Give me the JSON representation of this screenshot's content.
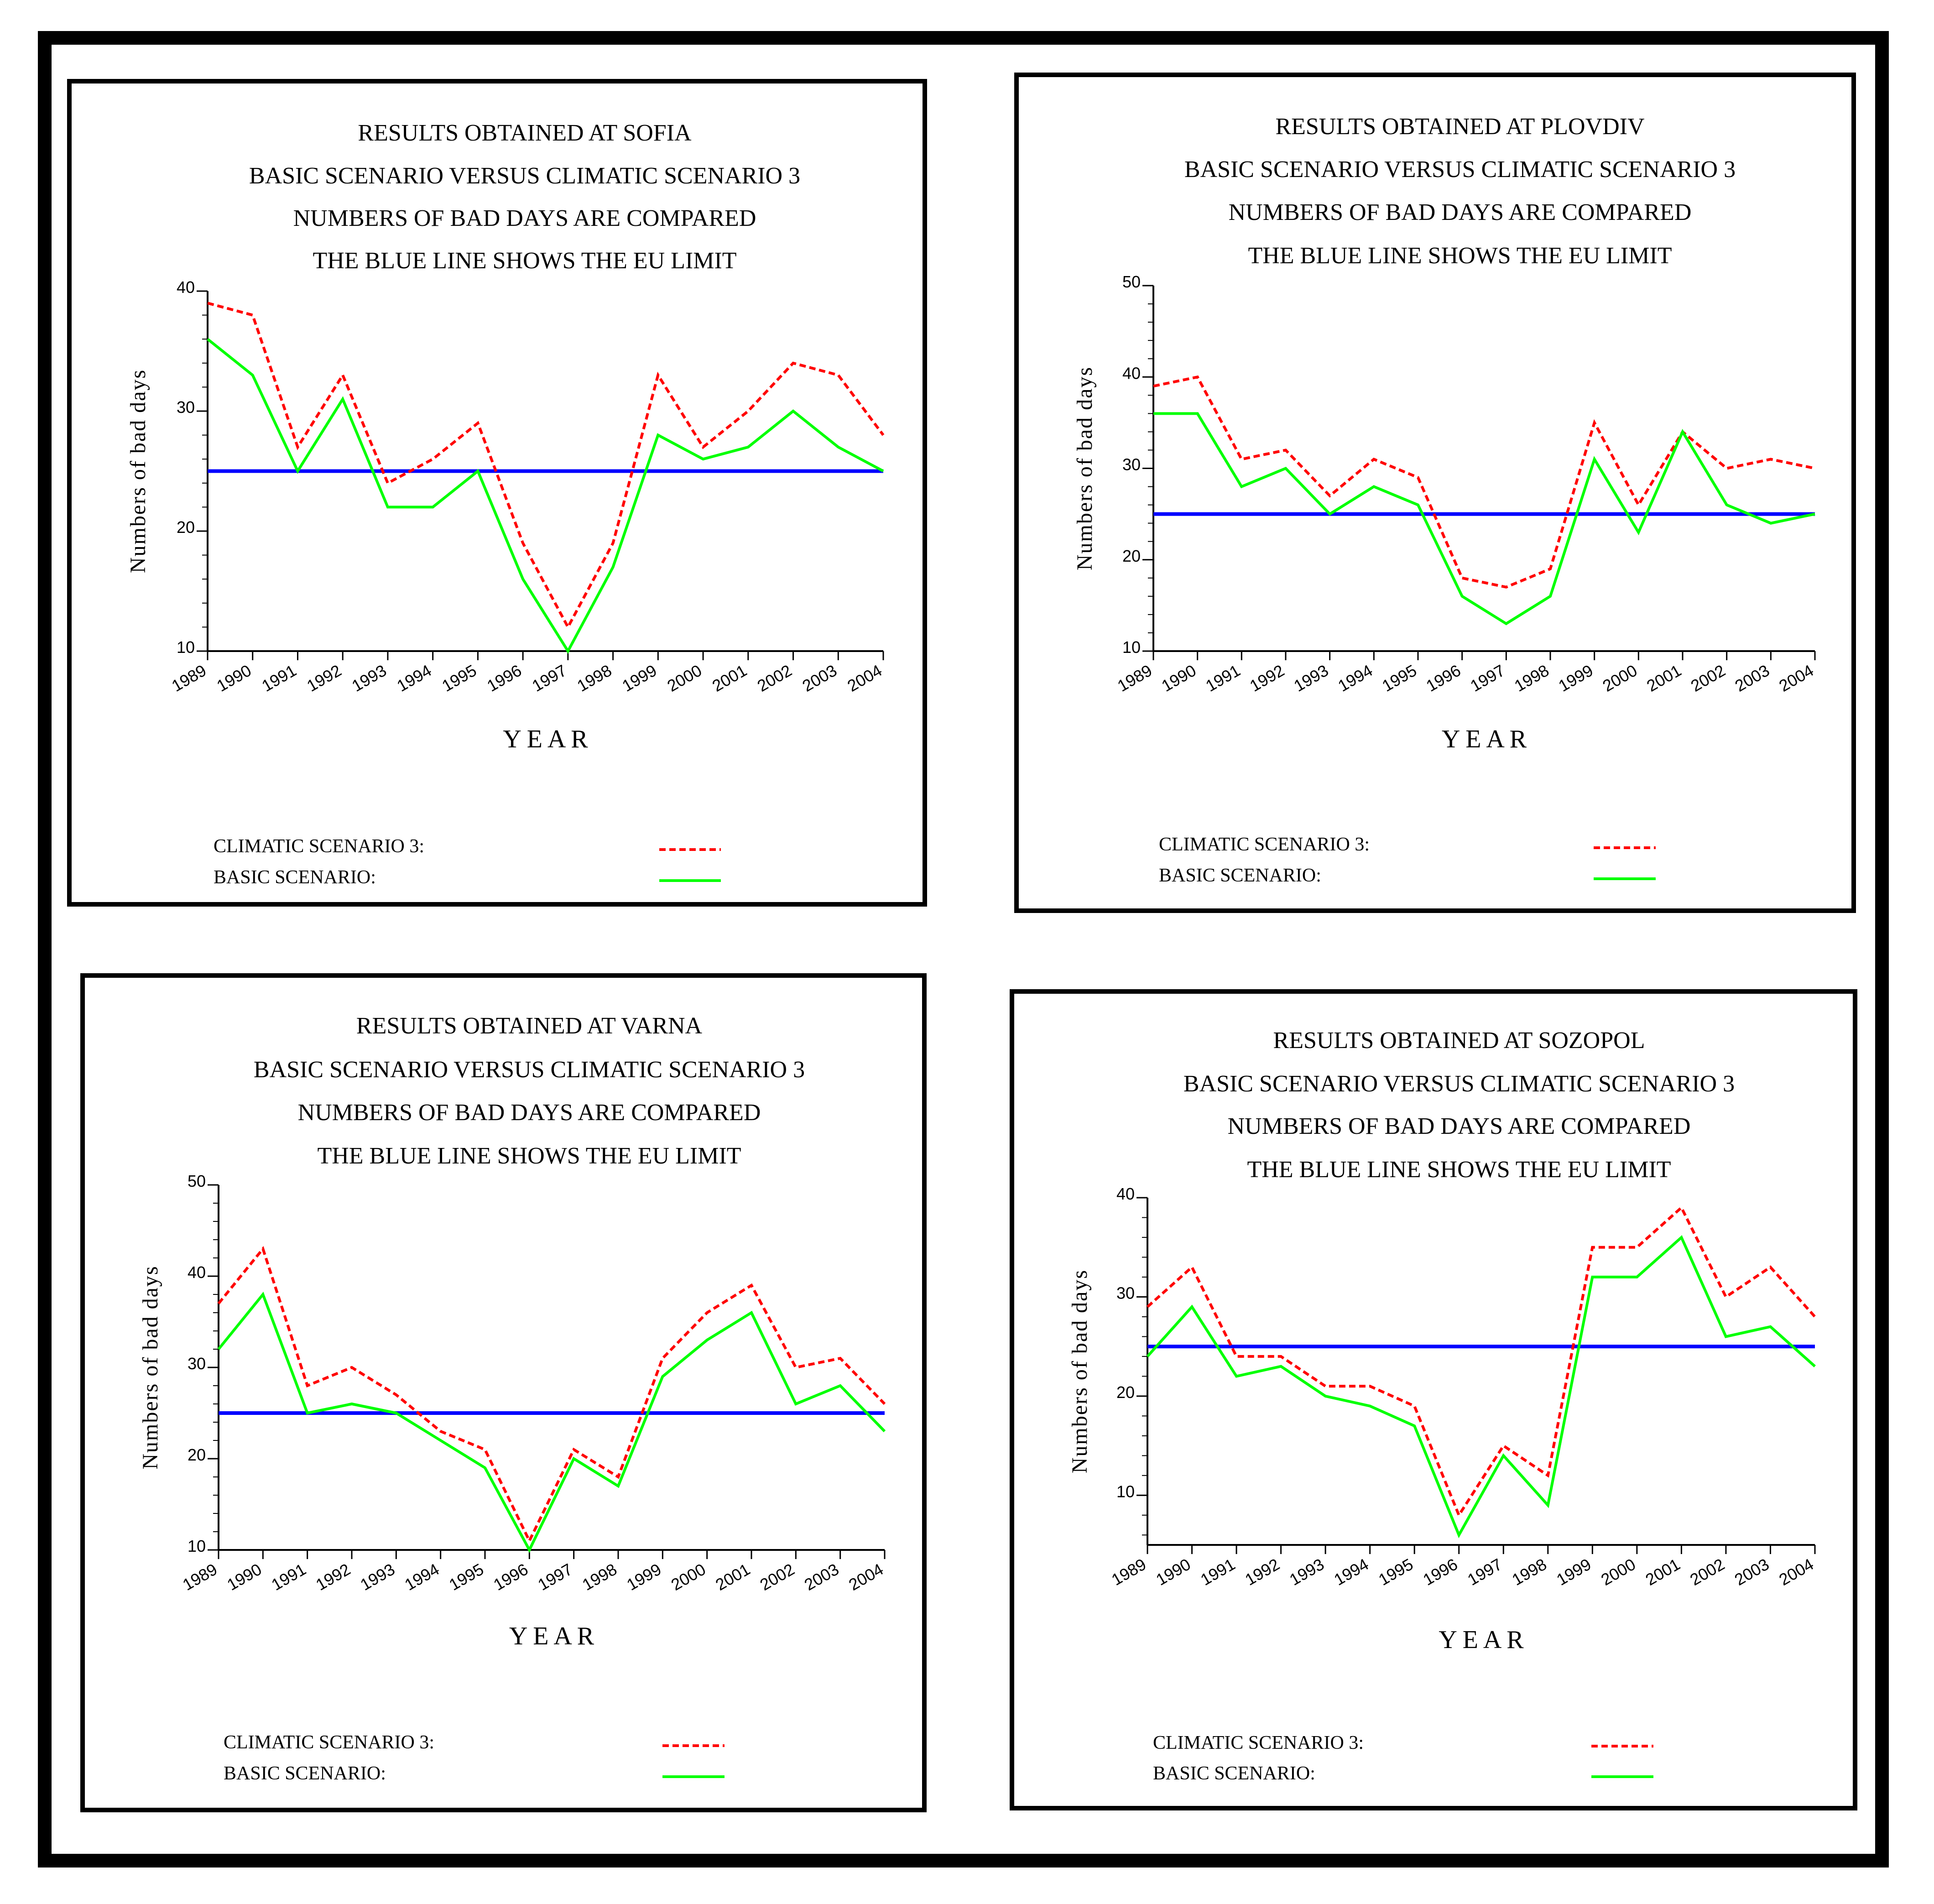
{
  "chart_data": [
    {
      "type": "line",
      "title_lines": [
        "RESULTS  OBTAINED  AT  SOFIA",
        "BASIC  SCENARIO  VERSUS  CLIMATIC  SCENARIO 3",
        "NUMBERS  OF BAD  DAYS  ARE  COMPARED",
        "THE  BLUE  LINE  SHOWS  THE  EU  LIMIT"
      ],
      "xlabel": "Y  E  A  R",
      "ylabel": "Numbers  of  bad  days",
      "ylim": [
        10,
        40
      ],
      "yticks": [
        10,
        20,
        30,
        40
      ],
      "categories": [
        "1989",
        "1990",
        "1991",
        "1992",
        "1993",
        "1994",
        "1995",
        "1996",
        "1997",
        "1998",
        "1999",
        "2000",
        "2001",
        "2002",
        "2003",
        "2004"
      ],
      "series": [
        {
          "name": "CLIMATIC  SCENARIO  3:",
          "color": "#ff0000",
          "style": "dashed",
          "values": [
            39,
            38,
            27,
            33,
            24,
            26,
            29,
            19,
            12,
            19,
            33,
            27,
            30,
            34,
            33,
            28
          ]
        },
        {
          "name": "BASIC  SCENARIO:",
          "color": "#00ff00",
          "style": "solid",
          "values": [
            36,
            33,
            25,
            31,
            22,
            22,
            25,
            16,
            10,
            17,
            28,
            26,
            27,
            30,
            27,
            25
          ]
        }
      ],
      "limit": {
        "value": 25,
        "color": "#0000ff"
      }
    },
    {
      "type": "line",
      "title_lines": [
        "RESULTS  OBTAINED  AT  PLOVDIV",
        "BASIC  SCENARIO  VERSUS  CLIMATIC  SCENARIO 3",
        "NUMBERS  OF BAD  DAYS  ARE  COMPARED",
        "THE  BLUE  LINE  SHOWS  THE  EU  LIMIT"
      ],
      "xlabel": "Y  E  A  R",
      "ylabel": "Numbers  of  bad  days",
      "ylim": [
        10,
        50
      ],
      "yticks": [
        10,
        20,
        30,
        40,
        50
      ],
      "categories": [
        "1989",
        "1990",
        "1991",
        "1992",
        "1993",
        "1994",
        "1995",
        "1996",
        "1997",
        "1998",
        "1999",
        "2000",
        "2001",
        "2002",
        "2003",
        "2004"
      ],
      "series": [
        {
          "name": "CLIMATIC  SCENARIO  3:",
          "color": "#ff0000",
          "style": "dashed",
          "values": [
            39,
            40,
            31,
            32,
            27,
            31,
            29,
            18,
            17,
            19,
            35,
            26,
            34,
            30,
            31,
            30
          ]
        },
        {
          "name": "BASIC  SCENARIO:",
          "color": "#00ff00",
          "style": "solid",
          "values": [
            36,
            36,
            28,
            30,
            25,
            28,
            26,
            16,
            13,
            16,
            31,
            23,
            34,
            26,
            24,
            25
          ]
        }
      ],
      "limit": {
        "value": 25,
        "color": "#0000ff"
      }
    },
    {
      "type": "line",
      "title_lines": [
        "RESULTS  OBTAINED  AT  VARNA",
        "BASIC  SCENARIO  VERSUS  CLIMATIC  SCENARIO 3",
        "NUMBERS  OF BAD  DAYS  ARE  COMPARED",
        "THE  BLUE  LINE  SHOWS  THE  EU  LIMIT"
      ],
      "xlabel": "Y  E  A  R",
      "ylabel": "Numbers  of  bad  days",
      "ylim": [
        10,
        50
      ],
      "yticks": [
        10,
        20,
        30,
        40,
        50
      ],
      "categories": [
        "1989",
        "1990",
        "1991",
        "1992",
        "1993",
        "1994",
        "1995",
        "1996",
        "1997",
        "1998",
        "1999",
        "2000",
        "2001",
        "2002",
        "2003",
        "2004"
      ],
      "series": [
        {
          "name": "CLIMATIC  SCENARIO  3:",
          "color": "#ff0000",
          "style": "dashed",
          "values": [
            37,
            43,
            28,
            30,
            27,
            23,
            21,
            11,
            21,
            18,
            31,
            36,
            39,
            30,
            31,
            26
          ]
        },
        {
          "name": "BASIC  SCENARIO:",
          "color": "#00ff00",
          "style": "solid",
          "values": [
            32,
            38,
            25,
            26,
            25,
            22,
            19,
            10,
            20,
            17,
            29,
            33,
            36,
            26,
            28,
            23
          ]
        }
      ],
      "limit": {
        "value": 25,
        "color": "#0000ff"
      }
    },
    {
      "type": "line",
      "title_lines": [
        "RESULTS  OBTAINED  AT  SOZOPOL",
        "BASIC  SCENARIO  VERSUS  CLIMATIC  SCENARIO 3",
        "NUMBERS  OF BAD  DAYS  ARE  COMPARED",
        "THE  BLUE  LINE  SHOWS  THE  EU  LIMIT"
      ],
      "xlabel": "Y  E  A  R",
      "ylabel": "Numbers  of  bad  days",
      "ylim": [
        5,
        40
      ],
      "yticks": [
        10,
        20,
        30,
        40
      ],
      "categories": [
        "1989",
        "1990",
        "1991",
        "1992",
        "1993",
        "1994",
        "1995",
        "1996",
        "1997",
        "1998",
        "1999",
        "2000",
        "2001",
        "2002",
        "2003",
        "2004"
      ],
      "series": [
        {
          "name": "CLIMATIC  SCENARIO  3:",
          "color": "#ff0000",
          "style": "dashed",
          "values": [
            29,
            33,
            24,
            24,
            21,
            21,
            19,
            8,
            15,
            12,
            35,
            35,
            39,
            30,
            33,
            28
          ]
        },
        {
          "name": "BASIC  SCENARIO:",
          "color": "#00ff00",
          "style": "solid",
          "values": [
            24,
            29,
            22,
            23,
            20,
            19,
            17,
            6,
            14,
            9,
            32,
            32,
            36,
            26,
            27,
            23
          ]
        }
      ],
      "limit": {
        "value": 25,
        "color": "#0000ff"
      }
    }
  ]
}
